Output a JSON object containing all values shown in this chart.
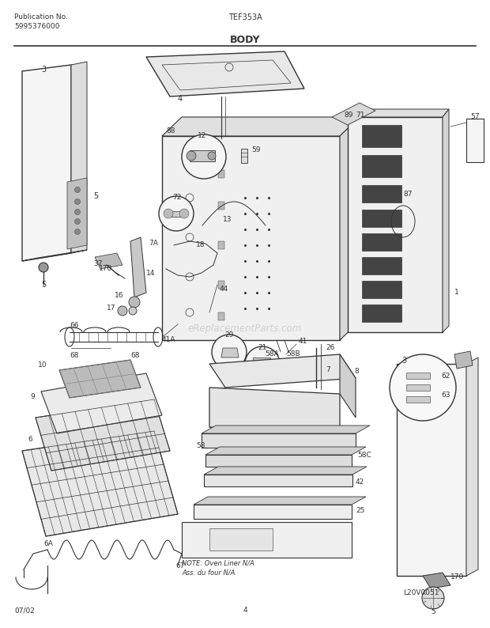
{
  "title": "BODY",
  "pub_no_label": "Publication No.",
  "pub_no": "5995376000",
  "model": "TEF353A",
  "date_code": "07/02",
  "page_num": "4",
  "image_id": "L20V0051",
  "note_line1": "NOTE: Oven Liner N/A",
  "note_line2": "Ass. du four N/A",
  "watermark": "eReplacementParts.com",
  "bg_color": "#ffffff",
  "line_color": "#333333"
}
